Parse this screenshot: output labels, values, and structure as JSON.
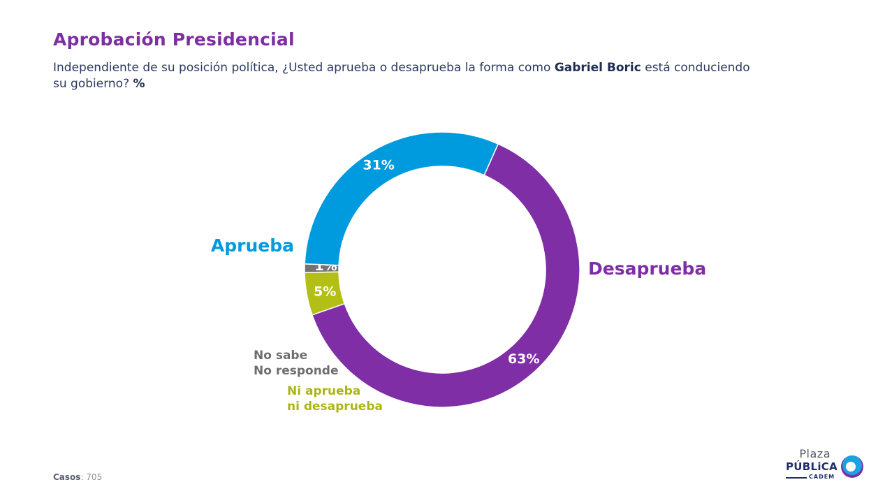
{
  "header": {
    "title": "Aprobación Presidencial",
    "question_pre": "Independiente de su posición política, ¿Usted aprueba o desaprueba la forma como ",
    "question_name": "Gabriel Boric",
    "question_post": " está conduciendo su gobierno? ",
    "question_unit": "%"
  },
  "chart_data": {
    "type": "pie",
    "donut": true,
    "slices": [
      {
        "label": "Desaprueba",
        "value": 63,
        "value_label": "63%",
        "color": "#7f2ea6"
      },
      {
        "label": "Ni aprueba ni desaprueba",
        "label_lines": [
          "Ni aprueba",
          "ni desaprueba"
        ],
        "value": 5,
        "value_label": "5%",
        "color": "#b3bf14"
      },
      {
        "label": "No sabe No responde",
        "label_lines": [
          "No sabe",
          "No responde"
        ],
        "value": 1,
        "value_label": "1%",
        "color": "#737373"
      },
      {
        "label": "Aprueba",
        "value": 31,
        "value_label": "31%",
        "color": "#009ade"
      }
    ]
  },
  "footer": {
    "cases_label": "Casos",
    "cases_value": ": 705"
  },
  "logo": {
    "line1": "Plaza",
    "line2": "PÚBLiCA",
    "line3": "CADEM"
  }
}
